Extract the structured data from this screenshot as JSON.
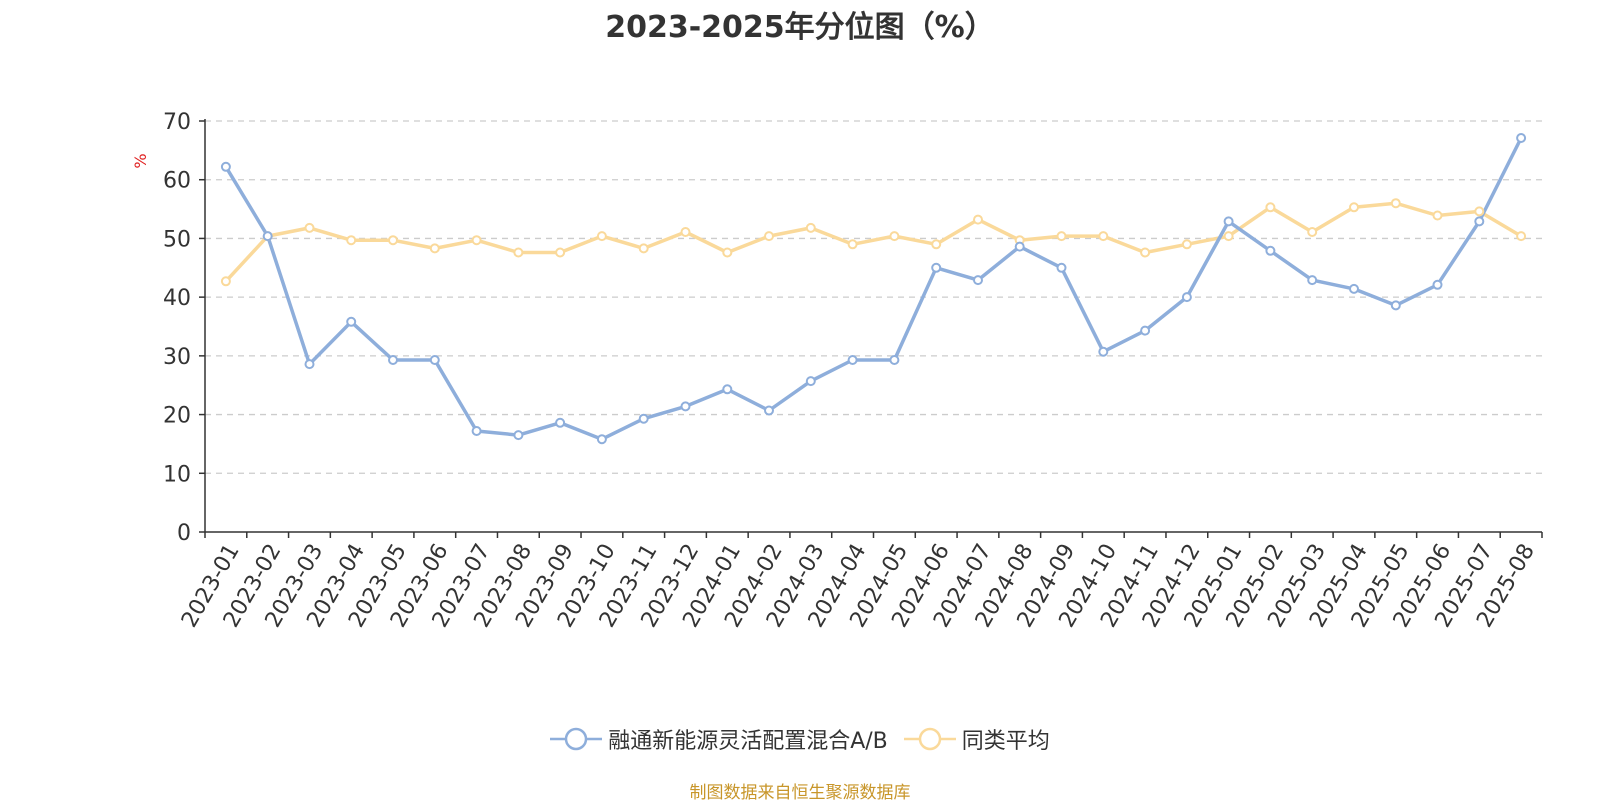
{
  "chart_data": {
    "type": "line",
    "title": "2023-2025年分位图（%）",
    "ylabel": "%",
    "xlabel": "",
    "ylim": [
      0,
      70
    ],
    "yticks": [
      0,
      10,
      20,
      30,
      40,
      50,
      60,
      70
    ],
    "grid": "horizontal dashed",
    "legend_position": "bottom",
    "categories": [
      "2023-01",
      "2023-02",
      "2023-03",
      "2023-04",
      "2023-05",
      "2023-06",
      "2023-07",
      "2023-08",
      "2023-09",
      "2023-10",
      "2023-11",
      "2023-12",
      "2024-01",
      "2024-02",
      "2024-03",
      "2024-04",
      "2024-05",
      "2024-06",
      "2024-07",
      "2024-08",
      "2024-09",
      "2024-10",
      "2024-11",
      "2024-12",
      "2025-01",
      "2025-02",
      "2025-03",
      "2025-04",
      "2025-05",
      "2025-06",
      "2025-07",
      "2025-08"
    ],
    "series": [
      {
        "name": "融通新能源灵活配置混合A/B",
        "color": "#8eaedb",
        "values": [
          62.2,
          50.4,
          28.6,
          35.8,
          29.3,
          29.3,
          17.2,
          16.5,
          18.6,
          15.8,
          19.3,
          21.4,
          24.3,
          20.7,
          25.7,
          29.3,
          29.3,
          45.0,
          42.9,
          48.6,
          45.0,
          30.7,
          34.3,
          40.0,
          52.9,
          47.9,
          42.9,
          41.4,
          38.6,
          42.1,
          52.9,
          67.1
        ]
      },
      {
        "name": "同类平均",
        "color": "#fad99a",
        "values": [
          42.7,
          50.4,
          51.8,
          49.7,
          49.7,
          48.3,
          49.7,
          47.6,
          47.6,
          50.4,
          48.3,
          51.1,
          47.6,
          50.4,
          51.8,
          49.0,
          50.4,
          49.0,
          53.2,
          49.7,
          50.4,
          50.4,
          47.6,
          49.0,
          50.4,
          55.3,
          51.1,
          55.3,
          56.0,
          53.9,
          54.6,
          50.4
        ]
      }
    ]
  },
  "legend": {
    "items": [
      {
        "label": "融通新能源灵活配置混合A/B"
      },
      {
        "label": "同类平均"
      }
    ]
  },
  "footer": {
    "source": "制图数据来自恒生聚源数据库"
  },
  "colors": {
    "axis": "#333333",
    "grid": "#cccccc",
    "ylabel": "#e02020",
    "tick_text": "#333333"
  }
}
